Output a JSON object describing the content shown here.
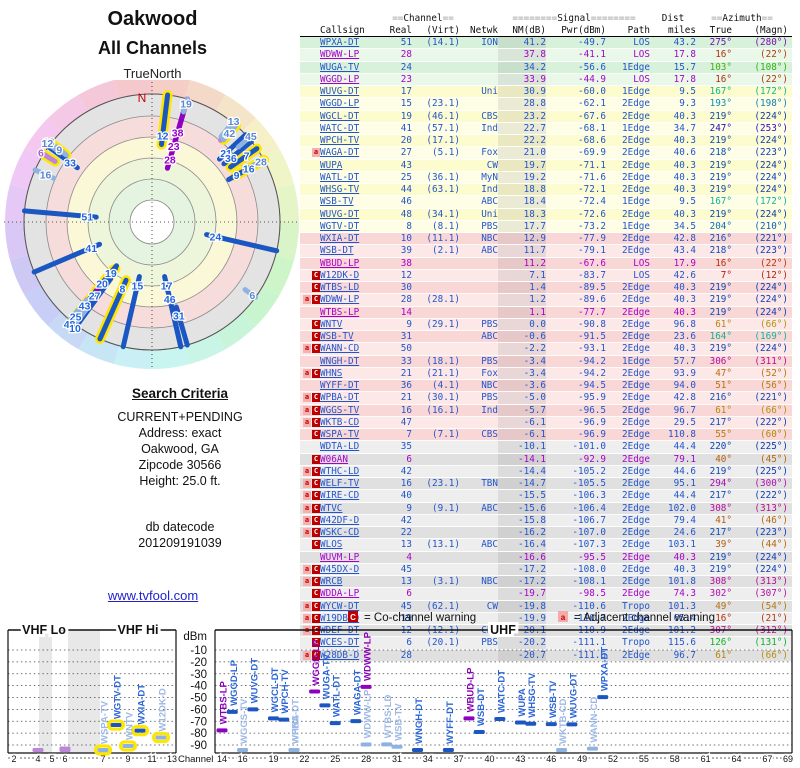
{
  "header": {
    "title_line1": "Oakwood",
    "title_line2": "All Channels",
    "true_north": "TrueNorth",
    "north_label": "N"
  },
  "search": {
    "heading": "Search Criteria",
    "lines": [
      "CURRENT+PENDING",
      "Address: exact",
      "Oakwood, GA",
      "Zipcode 30566",
      "Height: 25.0 ft."
    ],
    "db_lines": [
      "db datecode",
      "201209191039"
    ],
    "link": "www.tvfool.com"
  },
  "legend": {
    "co": {
      "symbol": "C",
      "label": "= Co-channel warning"
    },
    "adj": {
      "symbol": "a",
      "label": "= Adjacent channel warning"
    }
  },
  "table": {
    "header_groups": {
      "channel": "==Channel==",
      "signal": "========Signal========",
      "dist": "Dist",
      "azimuth": "==Azimuth=="
    },
    "columns": [
      "Callsign",
      "Real",
      "(Virt)",
      "Netwk",
      "NM(dB)",
      "Pwr(dBm)",
      "Path",
      "miles",
      "True",
      "(Magn)"
    ],
    "row_fields": [
      "warn",
      "callsign",
      "lp_purple",
      "real",
      "virt",
      "netwk",
      "nm",
      "pwr",
      "path",
      "miles",
      "true_az",
      "magn_az",
      "group",
      "flags"
    ],
    "rows": [
      [
        "",
        "WPXA-DT",
        0,
        "51",
        "(14.1)",
        "ION",
        "41.2",
        "-49.7",
        "LOS",
        "43.2",
        275,
        280,
        "g",
        ""
      ],
      [
        "",
        "WDWW-LP",
        1,
        "28",
        "",
        "",
        "37.8",
        "-41.1",
        "LOS",
        "17.8",
        16,
        22,
        "g",
        ""
      ],
      [
        "",
        "WUGA-TV",
        0,
        "24",
        "",
        "",
        "34.2",
        "-56.6",
        "1Edge",
        "15.7",
        103,
        108,
        "g",
        ""
      ],
      [
        "",
        "WGGD-LP",
        1,
        "23",
        "",
        "",
        "33.9",
        "-44.9",
        "LOS",
        "17.8",
        16,
        22,
        "g",
        ""
      ],
      [
        "",
        "WUVG-DT",
        0,
        "17",
        "",
        "Uni",
        "30.9",
        "-60.0",
        "1Edge",
        "9.5",
        167,
        172,
        "y",
        ""
      ],
      [
        "",
        "WGGD-LP",
        0,
        "15",
        "(23.1)",
        "",
        "28.8",
        "-62.1",
        "2Edge",
        "9.3",
        193,
        198,
        "y",
        ""
      ],
      [
        "",
        "WGCL-DT",
        0,
        "19",
        "(46.1)",
        "CBS",
        "23.2",
        "-67.6",
        "2Edge",
        "40.3",
        219,
        224,
        "y",
        ""
      ],
      [
        "",
        "WATC-DT",
        0,
        "41",
        "(57.1)",
        "Ind",
        "22.7",
        "-68.1",
        "1Edge",
        "34.7",
        247,
        253,
        "y",
        ""
      ],
      [
        "",
        "WPCH-TV",
        0,
        "20",
        "(17.1)",
        "",
        "22.2",
        "-68.6",
        "2Edge",
        "40.3",
        219,
        224,
        "y",
        ""
      ],
      [
        "a",
        "WAGA-DT",
        0,
        "27",
        "(5.1)",
        "Fox",
        "21.0",
        "-69.9",
        "2Edge",
        "40.6",
        218,
        223,
        "y",
        "p"
      ],
      [
        "",
        "WUPA",
        0,
        "43",
        "",
        "CW",
        "19.7",
        "-71.1",
        "2Edge",
        "40.3",
        219,
        224,
        "y",
        "p"
      ],
      [
        "",
        "WATL-DT",
        0,
        "25",
        "(36.1)",
        "MyN",
        "19.2",
        "-71.6",
        "2Edge",
        "40.3",
        219,
        224,
        "y",
        ""
      ],
      [
        "",
        "WHSG-TV",
        0,
        "44",
        "(63.1)",
        "Ind",
        "18.8",
        "-72.1",
        "2Edge",
        "40.3",
        219,
        224,
        "y",
        ""
      ],
      [
        "",
        "WSB-TV",
        0,
        "46",
        "",
        "ABC",
        "18.4",
        "-72.4",
        "1Edge",
        "9.5",
        167,
        172,
        "y",
        ""
      ],
      [
        "",
        "WUVG-DT",
        0,
        "48",
        "(34.1)",
        "Uni",
        "18.3",
        "-72.6",
        "2Edge",
        "40.3",
        219,
        224,
        "y",
        ""
      ],
      [
        "",
        "WGTV-DT",
        0,
        "8",
        "(8.1)",
        "PBS",
        "17.7",
        "-73.2",
        "1Edge",
        "34.5",
        204,
        210,
        "y",
        "pc"
      ],
      [
        "",
        "WXIA-DT",
        0,
        "10",
        "(11.1)",
        "NBC",
        "12.9",
        "-77.9",
        "2Edge",
        "42.8",
        216,
        221,
        "p",
        "c"
      ],
      [
        "",
        "WSB-DT",
        0,
        "39",
        "(2.1)",
        "ABC",
        "11.7",
        "-79.1",
        "2Edge",
        "43.4",
        218,
        223,
        "p",
        ""
      ],
      [
        "",
        "WBUD-LP",
        1,
        "38",
        "",
        "",
        "11.2",
        "-67.6",
        "LOS",
        "17.9",
        16,
        22,
        "p",
        ""
      ],
      [
        "C",
        "W12DK-D",
        0,
        "12",
        "",
        "",
        "7.1",
        "-83.7",
        "LOS",
        "42.6",
        7,
        12,
        "p",
        "pcw"
      ],
      [
        "C",
        "WTBS-LD",
        0,
        "30",
        "",
        "",
        "1.4",
        "-89.5",
        "2Edge",
        "40.3",
        219,
        224,
        "p",
        "w"
      ],
      [
        "aC",
        "WDWW-LP",
        0,
        "28",
        "(28.1)",
        "",
        "1.2",
        "-89.6",
        "2Edge",
        "40.3",
        219,
        224,
        "p",
        "w"
      ],
      [
        "",
        "WTBS-LP",
        1,
        "14",
        "",
        "",
        "1.1",
        "-77.7",
        "2Edge",
        "40.3",
        219,
        224,
        "p",
        ""
      ],
      [
        "C",
        "WNTV",
        0,
        "9",
        "(29.1)",
        "PBS",
        "0.0",
        "-90.8",
        "2Edge",
        "96.8",
        61,
        66,
        "p",
        "cw"
      ],
      [
        "C",
        "WSB-TV",
        0,
        "31",
        "",
        "ABC",
        "-0.6",
        "-91.5",
        "2Edge",
        "23.6",
        164,
        169,
        "p",
        "w"
      ],
      [
        "aC",
        "WANN-CD",
        0,
        "50",
        "",
        "",
        "-2.2",
        "-93.1",
        "2Edge",
        "40.3",
        219,
        224,
        "p",
        "w"
      ],
      [
        "",
        "WNGH-DT",
        0,
        "33",
        "(18.1)",
        "PBS",
        "-3.4",
        "-94.2",
        "1Edge",
        "57.7",
        306,
        311,
        "p",
        ""
      ],
      [
        "aC",
        "WHNS",
        0,
        "21",
        "(21.1)",
        "Fox",
        "-3.4",
        "-94.2",
        "2Edge",
        "93.9",
        47,
        52,
        "p",
        "w"
      ],
      [
        "",
        "WYFF-DT",
        0,
        "36",
        "(4.1)",
        "NBC",
        "-3.6",
        "-94.5",
        "2Edge",
        "94.0",
        51,
        56,
        "p",
        ""
      ],
      [
        "aC",
        "WPBA-DT",
        0,
        "21",
        "(30.1)",
        "PBS",
        "-5.0",
        "-95.9",
        "2Edge",
        "42.8",
        216,
        221,
        "p",
        "w"
      ],
      [
        "aC",
        "WGGS-TV",
        0,
        "16",
        "(16.1)",
        "Ind",
        "-5.7",
        "-96.5",
        "2Edge",
        "96.7",
        61,
        66,
        "p",
        "pw"
      ],
      [
        "aC",
        "WKTB-CD",
        0,
        "47",
        "",
        "",
        "-6.1",
        "-96.9",
        "2Edge",
        "29.5",
        217,
        222,
        "p",
        "w"
      ],
      [
        "C",
        "WSPA-TV",
        0,
        "7",
        "(7.1)",
        "CBS",
        "-6.1",
        "-96.9",
        "2Edge",
        "110.8",
        55,
        60,
        "p",
        "pcw"
      ],
      [
        "",
        "WDTA-LD",
        0,
        "35",
        "",
        "",
        "-10.1",
        "-101.0",
        "2Edge",
        "44.4",
        220,
        225,
        "gr",
        ""
      ],
      [
        "C",
        "W06AN",
        1,
        "6",
        "",
        "",
        "-14.1",
        "-92.9",
        "2Edge",
        "79.1",
        40,
        45,
        "gr",
        "wn"
      ],
      [
        "aC",
        "WTHC-LD",
        0,
        "42",
        "",
        "",
        "-14.4",
        "-105.2",
        "2Edge",
        "44.6",
        219,
        225,
        "gr",
        ""
      ],
      [
        "aC",
        "WELF-TV",
        0,
        "16",
        "(23.1)",
        "TBN",
        "-14.7",
        "-105.5",
        "2Edge",
        "95.1",
        294,
        300,
        "gr",
        ""
      ],
      [
        "aC",
        "WIRE-CD",
        0,
        "40",
        "",
        "",
        "-15.5",
        "-106.3",
        "2Edge",
        "44.4",
        217,
        222,
        "gr",
        ""
      ],
      [
        "aC",
        "WTVC",
        0,
        "9",
        "(9.1)",
        "ABC",
        "-15.6",
        "-106.4",
        "2Edge",
        "102.0",
        308,
        313,
        "gr",
        "p"
      ],
      [
        "aC",
        "W42DF-D",
        0,
        "42",
        "",
        "",
        "-15.8",
        "-106.7",
        "2Edge",
        "79.4",
        41,
        46,
        "gr",
        "p"
      ],
      [
        "aC",
        "WSKC-CD",
        0,
        "22",
        "",
        "",
        "-16.2",
        "-107.0",
        "2Edge",
        "24.6",
        217,
        223,
        "gr",
        ""
      ],
      [
        "C",
        "WLOS",
        0,
        "13",
        "(13.1)",
        "ABC",
        "-16.4",
        "-107.3",
        "2Edge",
        "103.1",
        39,
        44,
        "gr",
        ""
      ],
      [
        "",
        "WUVM-LP",
        1,
        "4",
        "",
        "",
        "-16.6",
        "-95.5",
        "2Edge",
        "40.3",
        219,
        224,
        "gr",
        "wn"
      ],
      [
        "aC",
        "W45DX-D",
        0,
        "45",
        "",
        "",
        "-17.2",
        "-108.0",
        "2Edge",
        "40.3",
        219,
        224,
        "gr",
        ""
      ],
      [
        "aC",
        "WRCB",
        0,
        "13",
        "(3.1)",
        "NBC",
        "-17.2",
        "-108.1",
        "2Edge",
        "101.8",
        308,
        313,
        "gr",
        "p"
      ],
      [
        "C",
        "WDDA-LP",
        1,
        "6",
        "",
        "",
        "-19.7",
        "-98.5",
        "2Edge",
        "74.3",
        302,
        307,
        "gr",
        "pwn"
      ],
      [
        "aC",
        "WYCW-DT",
        0,
        "45",
        "(62.1)",
        "CW",
        "-19.8",
        "-110.6",
        "Tropo",
        "101.3",
        49,
        54,
        "gr",
        ""
      ],
      [
        "aC",
        "W19DB-D",
        0,
        "19",
        "",
        "",
        "-19.9",
        "-110.7",
        "2Edge",
        "65.4",
        16,
        21,
        "gr",
        ""
      ],
      [
        "aC",
        "WDEF-DT",
        0,
        "12",
        "(12.1)",
        "CBS",
        "-20.1",
        "-110.9",
        "2Edge",
        "101.2",
        307,
        312,
        "gr",
        ""
      ],
      [
        "C",
        "WCES-DT",
        0,
        "6",
        "(20.1)",
        "PBS",
        "-20.2",
        "-111.1",
        "Tropo",
        "115.6",
        126,
        131,
        "gr",
        ""
      ],
      [
        "aC",
        "W28DB-D",
        0,
        "28",
        "",
        "",
        "-20.7",
        "-111.6",
        "2Edge",
        "96.7",
        61,
        66,
        "gr",
        "pw"
      ]
    ]
  },
  "charts": {
    "dbm_label": "dBm",
    "channel_label": "Channel",
    "vhf_lo_label": "VHF Lo",
    "vhf_hi_label": "VHF Hi",
    "uhf_label": "UHF",
    "dbm_ticks": [
      -10,
      -20,
      -30,
      -40,
      -50,
      -60,
      -70,
      -80,
      -90
    ],
    "vhf_ticks": [
      2,
      4,
      5,
      6,
      7,
      9,
      11,
      13
    ],
    "uhf_ticks": [
      14,
      16,
      19,
      22,
      25,
      28,
      31,
      34,
      37,
      40,
      43,
      46,
      49,
      52,
      55,
      58,
      61,
      64,
      67,
      69
    ]
  },
  "chart_data": [
    {
      "type": "polar",
      "title": "All Channels",
      "angular_axis": "azimuth true (deg)",
      "radial_axis": "NM(dB), stronger toward center",
      "north": "N",
      "points_source": "table.rows fields: real(channel), true_az(deg), nm(dB)"
    },
    {
      "type": "scatter",
      "title": "VHF Lo / VHF Hi / UHF signal power",
      "xlabel": "Channel",
      "ylabel": "dBm",
      "ylim": [
        -97,
        -5
      ],
      "x_ticks_vhf": [
        2,
        4,
        5,
        6,
        7,
        9,
        11,
        13
      ],
      "x_ticks_uhf": [
        14,
        16,
        19,
        22,
        25,
        28,
        31,
        34,
        37,
        40,
        43,
        46,
        49,
        52,
        55,
        58,
        61,
        64,
        67,
        69
      ],
      "points_source": "table.rows fields: real(channel), pwr(dBm), callsign"
    }
  ]
}
